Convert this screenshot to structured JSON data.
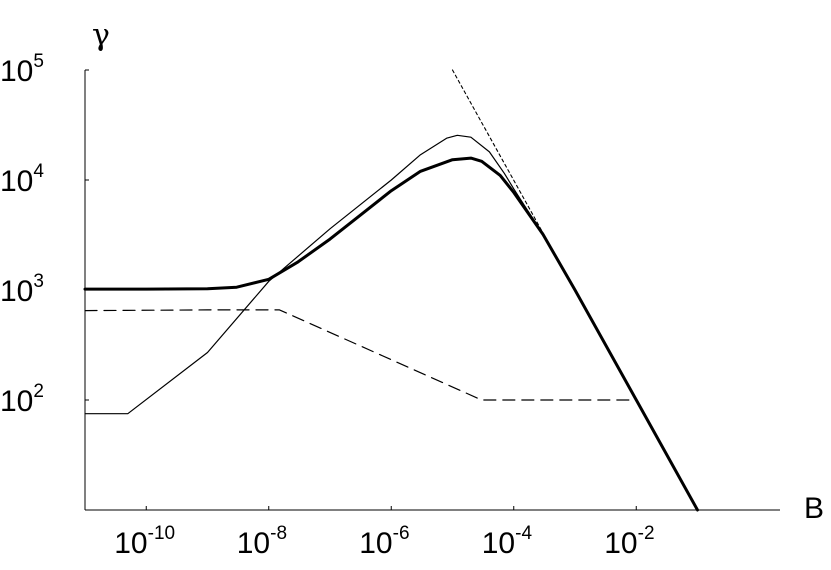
{
  "chart_data": {
    "type": "line",
    "title": "",
    "xlabel": "B",
    "ylabel": "γ",
    "x_scale": "log",
    "y_scale": "log",
    "xlim": [
      1e-11,
      1
    ],
    "ylim": [
      10,
      100000
    ],
    "grid": false,
    "legend": "none",
    "x_ticks": [
      {
        "base": "10",
        "exp": "-10",
        "value": 1e-10
      },
      {
        "base": "10",
        "exp": "-8",
        "value": 1e-08
      },
      {
        "base": "10",
        "exp": "-6",
        "value": 1e-06
      },
      {
        "base": "10",
        "exp": "-4",
        "value": 0.0001
      },
      {
        "base": "10",
        "exp": "-2",
        "value": 0.01
      }
    ],
    "y_ticks": [
      {
        "base": "10",
        "exp": "2",
        "value": 100
      },
      {
        "base": "10",
        "exp": "3",
        "value": 1000
      },
      {
        "base": "10",
        "exp": "4",
        "value": 10000
      },
      {
        "base": "10",
        "exp": "5",
        "value": 100000
      }
    ],
    "series": [
      {
        "style": "thick-solid",
        "color": "#000000",
        "x": [
          1e-11,
          1e-10,
          1e-09,
          3e-09,
          1e-08,
          3e-08,
          1e-07,
          3e-07,
          1e-06,
          3e-06,
          1e-05,
          2e-05,
          3e-05,
          6e-05,
          0.0001,
          0.0003,
          0.001,
          0.01,
          0.1
        ],
        "y": [
          1020,
          1020,
          1025,
          1060,
          1250,
          1800,
          2900,
          4700,
          8000,
          12000,
          15300,
          15800,
          14800,
          11000,
          7700,
          3200,
          1000,
          100,
          10
        ]
      },
      {
        "style": "thin-solid",
        "color": "#000000",
        "x": [
          1e-11,
          5e-11,
          1e-09,
          1e-08,
          1e-07,
          1e-06,
          3e-06,
          8e-06,
          1.2e-05,
          2e-05,
          4e-05,
          7e-05,
          0.0001,
          0.0003,
          0.001,
          0.01,
          0.1
        ],
        "y": [
          75,
          75,
          270,
          1200,
          3600,
          10000,
          17000,
          24000,
          25500,
          24500,
          18000,
          11500,
          8300,
          3200,
          1000,
          100,
          10
        ]
      },
      {
        "style": "dashed",
        "color": "#000000",
        "x": [
          1e-11,
          1e-09,
          1.5e-08,
          3e-05,
          0.01
        ],
        "y": [
          650,
          660,
          660,
          100,
          100
        ]
      },
      {
        "style": "dotted",
        "color": "#000000",
        "x": [
          1e-05,
          0.0003
        ],
        "y": [
          100000,
          3300
        ]
      }
    ]
  }
}
